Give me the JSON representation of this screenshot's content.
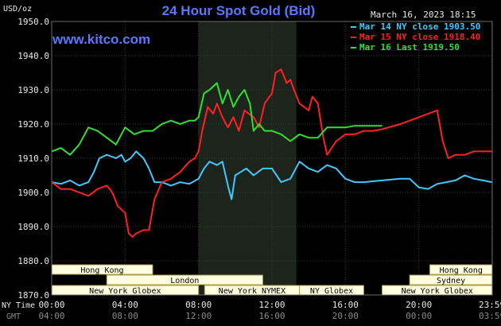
{
  "header": {
    "title": "24 Hour Spot Gold (Bid)",
    "site": "www.kitco.com",
    "date": "March 16, 2023 18:15",
    "yunit": "USD/oz"
  },
  "legend": [
    {
      "label": "Mar 14 NY close 1903.50",
      "color": "#40c8ff"
    },
    {
      "label": "Mar 15 NY close 1918.40",
      "color": "#ff2020"
    },
    {
      "label": "Mar 16 Last 1919.50",
      "color": "#30e030"
    }
  ],
  "axis_rows": {
    "ny_time_label": "NY Time",
    "gmt_label": "GMT"
  },
  "markets": [
    {
      "name": "Hong Kong",
      "start_h": 0,
      "end_h": 5.5,
      "row": 0
    },
    {
      "name": "London",
      "start_h": 3,
      "end_h": 11.5,
      "row": 1
    },
    {
      "name": "New York Globex",
      "start_h": 0,
      "end_h": 8,
      "row": 2
    },
    {
      "name": "New York NYMEX",
      "start_h": 8.33,
      "end_h": 13.5,
      "row": 2
    },
    {
      "name": "NY Globex",
      "start_h": 13.5,
      "end_h": 17,
      "row": 2
    },
    {
      "name": "Hong Kong",
      "start_h": 20.6,
      "end_h": 24,
      "row": 0
    },
    {
      "name": "Sydney",
      "start_h": 19.5,
      "end_h": 24,
      "row": 1
    },
    {
      "name": "New York Globex",
      "start_h": 18,
      "end_h": 24,
      "row": 2
    }
  ],
  "colors": {
    "background": "#000000",
    "plot_bg": "#000000",
    "grid": "#3a3a3a",
    "nymex_shade": "#1c241c",
    "market_box_bg": "#ffffe0",
    "market_box_border": "#b09a50",
    "axis_text": "#e8e8e8",
    "gmt_text": "#8a8a8a"
  },
  "chart_data": {
    "type": "line",
    "title": "24 Hour Spot Gold (Bid)",
    "ylabel": "USD/oz",
    "ylim": [
      1870,
      1950
    ],
    "yticks": [
      "1950.0",
      "1940.0",
      "1930.0",
      "1920.0",
      "1910.0",
      "1900.0",
      "1890.0",
      "1880.0",
      "1870.0"
    ],
    "yticks_values": [
      1950,
      1940,
      1930,
      1920,
      1910,
      1900,
      1890,
      1880,
      1870
    ],
    "xlim": [
      0,
      24
    ],
    "xticks": [
      {
        "h": 0,
        "ny": "00:00",
        "gmt": "04:00"
      },
      {
        "h": 4,
        "ny": "04:00",
        "gmt": "08:00"
      },
      {
        "h": 8,
        "ny": "08:00",
        "gmt": "12:00"
      },
      {
        "h": 12,
        "ny": "12:00",
        "gmt": "16:00"
      },
      {
        "h": 16,
        "ny": "16:00",
        "gmt": "20:00"
      },
      {
        "h": 20,
        "ny": "20:00",
        "gmt": "00:00"
      },
      {
        "h": 23.98,
        "ny": "23:59",
        "gmt": "03:59"
      }
    ],
    "nymex_session": [
      8,
      13.33
    ],
    "series": [
      {
        "name": "Mar 14 NY close 1903.50",
        "color": "#40c8ff",
        "x": [
          0,
          0.5,
          1,
          1.5,
          2,
          2.3,
          2.6,
          3,
          3.5,
          3.8,
          4,
          4.3,
          4.6,
          5,
          5.3,
          5.6,
          6,
          6.5,
          7,
          7.5,
          8,
          8.3,
          8.6,
          9,
          9.3,
          9.6,
          9.8,
          10,
          10.3,
          10.6,
          11,
          11.5,
          12,
          12.5,
          13,
          13.5,
          14,
          14.5,
          15,
          15.5,
          16,
          16.5,
          17,
          18,
          19,
          19.5,
          20,
          20.5,
          21,
          21.5,
          22,
          22.5,
          23,
          23.5,
          23.98
        ],
        "y": [
          1903,
          1902.5,
          1903.5,
          1902,
          1903,
          1906,
          1910,
          1911,
          1910,
          1911,
          1909,
          1910,
          1912,
          1910,
          1907,
          1903,
          1903,
          1902,
          1903,
          1902.5,
          1904,
          1907,
          1909,
          1908,
          1909,
          1902,
          1898,
          1905,
          1906,
          1907,
          1905,
          1907,
          1907,
          1903,
          1904,
          1909,
          1907,
          1906,
          1908,
          1907,
          1904,
          1903,
          1903,
          1903.5,
          1904,
          1904,
          1901.5,
          1901,
          1902.5,
          1903,
          1903.5,
          1905,
          1904,
          1903.5,
          1903
        ]
      },
      {
        "name": "Mar 15 NY close 1918.40",
        "color": "#ff2020",
        "x": [
          0,
          0.5,
          1,
          1.5,
          2,
          2.5,
          3,
          3.3,
          3.6,
          4,
          4.2,
          4.4,
          4.6,
          5,
          5.3,
          5.6,
          6,
          6.5,
          7,
          7.5,
          7.8,
          8,
          8.2,
          8.5,
          8.8,
          9,
          9.3,
          9.6,
          9.9,
          10.2,
          10.5,
          11,
          11.3,
          11.6,
          12,
          12.2,
          12.5,
          12.8,
          13,
          13.2,
          13.5,
          14,
          14.2,
          14.5,
          14.8,
          15,
          15.5,
          16,
          16.5,
          17,
          17.5,
          18,
          19,
          20,
          20.5,
          21,
          21.3,
          21.6,
          22,
          22.5,
          23,
          23.5,
          23.98
        ],
        "y": [
          1903,
          1901,
          1901,
          1900,
          1899,
          1901,
          1902,
          1900,
          1896,
          1894,
          1888,
          1887,
          1888,
          1889,
          1889,
          1898,
          1903,
          1904,
          1906,
          1909,
          1910,
          1912,
          1918,
          1925,
          1923,
          1926,
          1922,
          1919,
          1922,
          1918,
          1924,
          1922,
          1919,
          1926,
          1929,
          1935,
          1936,
          1932,
          1933,
          1930,
          1926,
          1924,
          1928,
          1926,
          1916,
          1911,
          1915,
          1917,
          1917,
          1918,
          1918,
          1918.5,
          1920,
          1922,
          1923,
          1924,
          1915,
          1910,
          1911,
          1911,
          1912,
          1912,
          1912
        ]
      },
      {
        "name": "Mar 16 Last 1919.50",
        "color": "#30e030",
        "x": [
          0,
          0.5,
          1,
          1.5,
          2,
          2.5,
          3,
          3.5,
          4,
          4.5,
          5,
          5.5,
          6,
          6.5,
          7,
          7.5,
          7.8,
          8,
          8.3,
          8.6,
          9,
          9.3,
          9.6,
          9.9,
          10.2,
          10.5,
          10.8,
          11,
          11.3,
          11.6,
          12,
          12.5,
          13,
          13.5,
          14,
          14.5,
          15,
          15.5,
          16,
          16.5,
          17,
          17.5,
          18
        ],
        "y": [
          1912,
          1913,
          1911,
          1914,
          1919,
          1918,
          1916,
          1914,
          1919,
          1917,
          1918,
          1918,
          1920,
          1921,
          1920,
          1921,
          1921,
          1922,
          1929,
          1930,
          1932,
          1926,
          1930,
          1925,
          1928,
          1930,
          1926,
          1918,
          1920,
          1918,
          1918,
          1917,
          1915,
          1917,
          1916,
          1916,
          1919,
          1919,
          1919,
          1919.5,
          1919.5,
          1919.5,
          1919.5
        ]
      }
    ]
  }
}
